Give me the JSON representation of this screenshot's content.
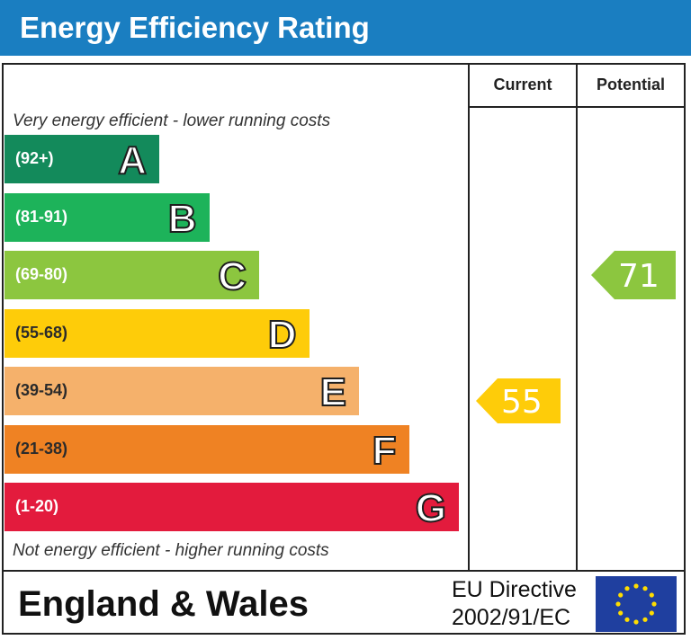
{
  "title": "Energy Efficiency Rating",
  "columns": {
    "current": "Current",
    "potential": "Potential"
  },
  "notes": {
    "top": "Very energy efficient - lower running costs",
    "bottom": "Not energy efficient - higher running costs"
  },
  "chart_data": {
    "type": "bar",
    "title": "Energy Efficiency Rating",
    "categories": [
      "A",
      "B",
      "C",
      "D",
      "E",
      "F",
      "G"
    ],
    "bands": [
      {
        "letter": "A",
        "range": "(92+)",
        "color": "#138a5b"
      },
      {
        "letter": "B",
        "range": "(81-91)",
        "color": "#1db35a"
      },
      {
        "letter": "C",
        "range": "(69-80)",
        "color": "#8cc63f"
      },
      {
        "letter": "D",
        "range": "(55-68)",
        "color": "#fecc09"
      },
      {
        "letter": "E",
        "range": "(39-54)",
        "color": "#f5b16b"
      },
      {
        "letter": "F",
        "range": "(21-38)",
        "color": "#ef8223"
      },
      {
        "letter": "G",
        "range": "(1-20)",
        "color": "#e31b3d"
      }
    ],
    "current": {
      "value": 55,
      "band": "D",
      "color": "#fecc09"
    },
    "potential": {
      "value": 71,
      "band": "C",
      "color": "#8cc63f"
    }
  },
  "footer": {
    "region": "England & Wales",
    "directive_line1": "EU Directive",
    "directive_line2": "2002/91/EC"
  }
}
